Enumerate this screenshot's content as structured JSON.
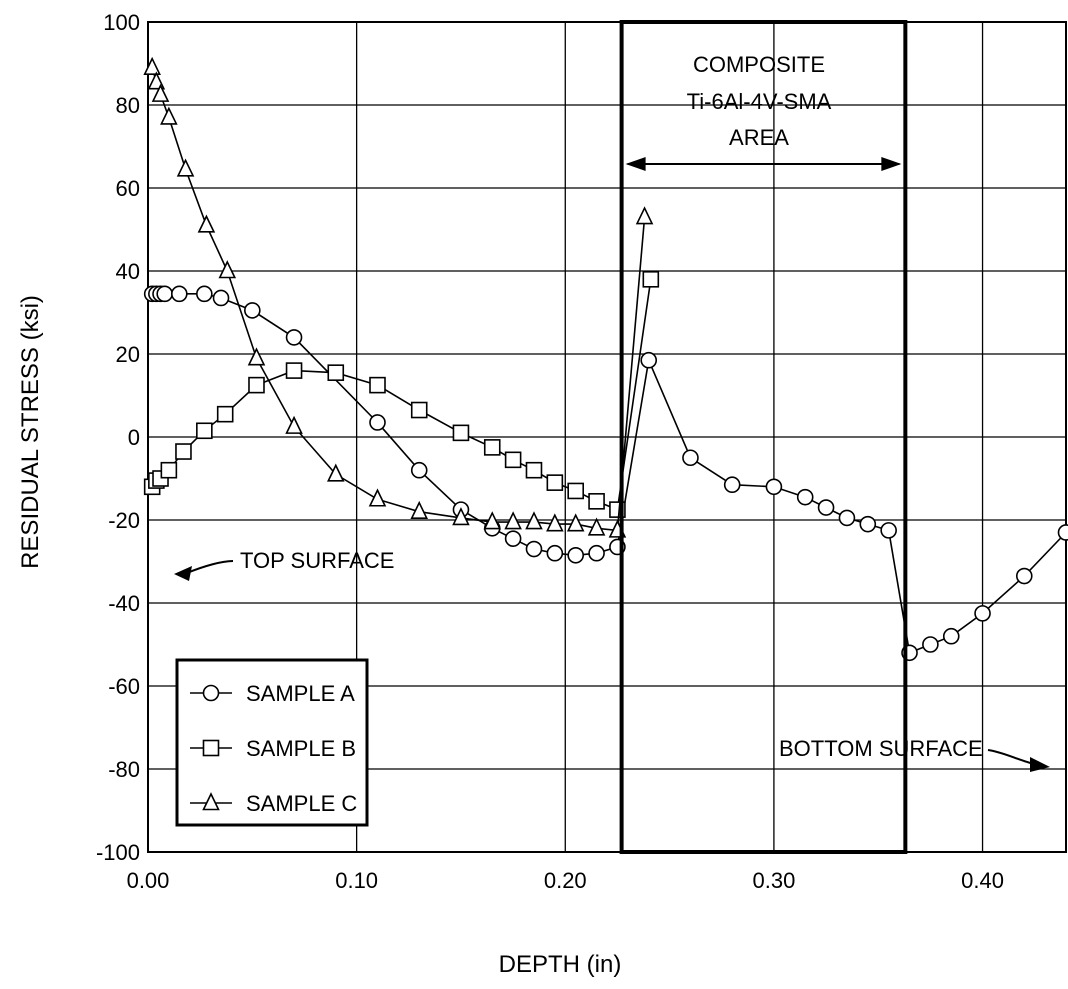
{
  "chart_data": {
    "type": "line",
    "xlabel": "DEPTH (in)",
    "ylabel": "RESIDUAL STRESS (ksi)",
    "xlim": [
      0.0,
      0.44
    ],
    "ylim": [
      -100,
      100
    ],
    "x_ticks": [
      0.0,
      0.1,
      0.2,
      0.3,
      0.4
    ],
    "x_tick_labels": [
      "0.00",
      "0.10",
      "0.20",
      "0.30",
      "0.40"
    ],
    "y_ticks": [
      -100,
      -80,
      -60,
      -40,
      -20,
      0,
      20,
      40,
      60,
      80,
      100
    ],
    "y_tick_labels": [
      "-100",
      "-80",
      "-60",
      "-40",
      "-20",
      "0",
      "20",
      "40",
      "60",
      "80",
      "100"
    ],
    "grid": true,
    "legend_position": "lower-left",
    "series": [
      {
        "name": "SAMPLE A",
        "marker": "circle",
        "points": [
          [
            0.002,
            34.5
          ],
          [
            0.004,
            34.5
          ],
          [
            0.006,
            34.5
          ],
          [
            0.008,
            34.5
          ],
          [
            0.015,
            34.5
          ],
          [
            0.027,
            34.5
          ],
          [
            0.035,
            33.5
          ],
          [
            0.05,
            30.5
          ],
          [
            0.07,
            24
          ],
          [
            0.11,
            3.5
          ],
          [
            0.13,
            -8
          ],
          [
            0.15,
            -17.5
          ],
          [
            0.165,
            -22
          ],
          [
            0.175,
            -24.5
          ],
          [
            0.185,
            -27
          ],
          [
            0.195,
            -28
          ],
          [
            0.205,
            -28.5
          ],
          [
            0.215,
            -28
          ],
          [
            0.225,
            -26.5
          ],
          [
            0.24,
            18.5
          ],
          [
            0.26,
            -5
          ],
          [
            0.28,
            -11.5
          ],
          [
            0.3,
            -12
          ],
          [
            0.315,
            -14.5
          ],
          [
            0.325,
            -17
          ],
          [
            0.335,
            -19.5
          ],
          [
            0.345,
            -21
          ],
          [
            0.355,
            -22.5
          ],
          [
            0.365,
            -52
          ],
          [
            0.375,
            -50
          ],
          [
            0.385,
            -48
          ],
          [
            0.4,
            -42.5
          ],
          [
            0.42,
            -33.5
          ],
          [
            0.44,
            -23
          ]
        ]
      },
      {
        "name": "SAMPLE B",
        "marker": "square",
        "points": [
          [
            0.002,
            -12
          ],
          [
            0.004,
            -10.5
          ],
          [
            0.006,
            -10
          ],
          [
            0.01,
            -8
          ],
          [
            0.017,
            -3.5
          ],
          [
            0.027,
            1.5
          ],
          [
            0.037,
            5.5
          ],
          [
            0.052,
            12.5
          ],
          [
            0.07,
            16
          ],
          [
            0.09,
            15.5
          ],
          [
            0.11,
            12.5
          ],
          [
            0.13,
            6.5
          ],
          [
            0.15,
            1
          ],
          [
            0.165,
            -2.5
          ],
          [
            0.175,
            -5.5
          ],
          [
            0.185,
            -8
          ],
          [
            0.195,
            -11
          ],
          [
            0.205,
            -13
          ],
          [
            0.215,
            -15.5
          ],
          [
            0.225,
            -17.5
          ],
          [
            0.241,
            38
          ]
        ]
      },
      {
        "name": "SAMPLE C",
        "marker": "triangle",
        "points": [
          [
            0.002,
            89
          ],
          [
            0.004,
            85.5
          ],
          [
            0.006,
            82.5
          ],
          [
            0.01,
            77
          ],
          [
            0.018,
            64.5
          ],
          [
            0.028,
            51
          ],
          [
            0.038,
            40
          ],
          [
            0.052,
            19
          ],
          [
            0.07,
            2.5
          ],
          [
            0.09,
            -9
          ],
          [
            0.11,
            -15
          ],
          [
            0.13,
            -18
          ],
          [
            0.15,
            -19.5
          ],
          [
            0.165,
            -20.5
          ],
          [
            0.175,
            -20.5
          ],
          [
            0.185,
            -20.5
          ],
          [
            0.195,
            -21
          ],
          [
            0.205,
            -21
          ],
          [
            0.215,
            -22
          ],
          [
            0.225,
            -22.5
          ],
          [
            0.238,
            53
          ]
        ]
      }
    ],
    "annotations": {
      "composite_area": {
        "lines": [
          "COMPOSITE",
          "Ti-6Al-4V-SMA",
          "AREA"
        ],
        "x_start": 0.227,
        "x_end": 0.363
      },
      "top_surface": "TOP SURFACE",
      "bottom_surface": "BOTTOM SURFACE"
    }
  }
}
